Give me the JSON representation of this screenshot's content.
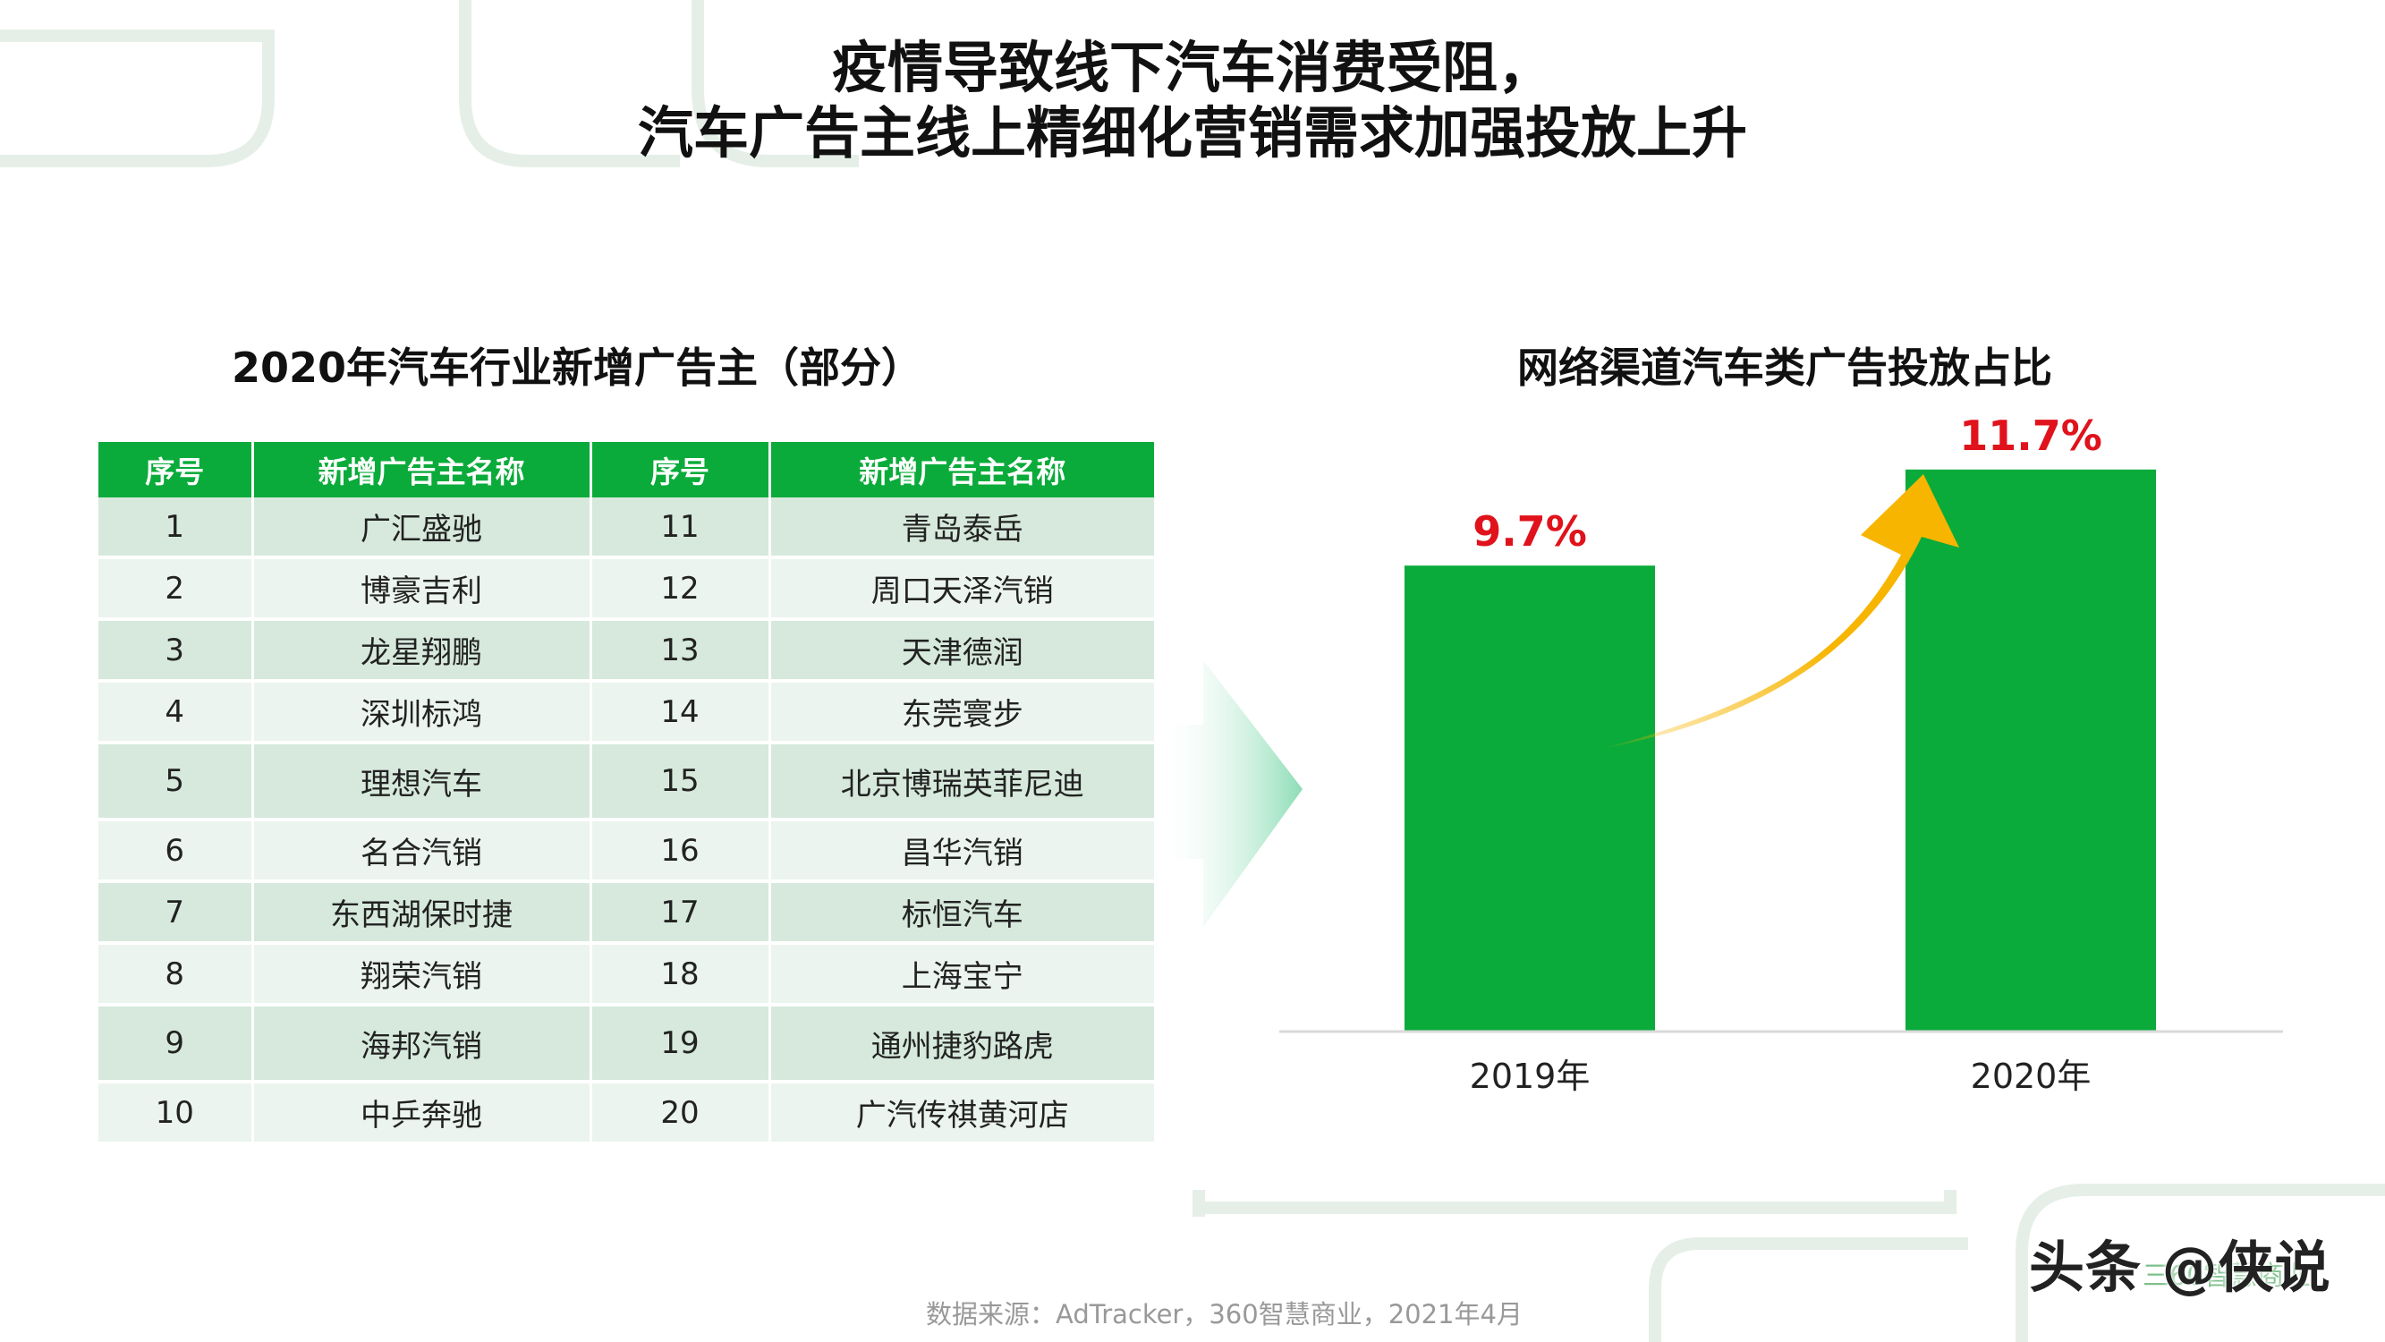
{
  "title": {
    "line1": "疫情导致线下汽车消费受阻，",
    "line2": "汽车广告主线上精细化营销需求加强投放上升"
  },
  "table": {
    "title": "2020年汽车行业新增广告主（部分）",
    "headers": [
      "序号",
      "新增广告主名称",
      "序号",
      "新增广告主名称"
    ],
    "rows": [
      [
        "1",
        "广汇盛驰",
        "11",
        "青岛泰岳"
      ],
      [
        "2",
        "博豪吉利",
        "12",
        "周口天泽汽销"
      ],
      [
        "3",
        "龙星翔鹏",
        "13",
        "天津德润"
      ],
      [
        "4",
        "深圳标鸿",
        "14",
        "东莞寰步"
      ],
      [
        "5",
        "理想汽车",
        "15",
        "北京博瑞英菲尼迪"
      ],
      [
        "6",
        "名合汽销",
        "16",
        "昌华汽销"
      ],
      [
        "7",
        "东西湖保时捷",
        "17",
        "标恒汽车"
      ],
      [
        "8",
        "翔荣汽销",
        "18",
        "上海宝宁"
      ],
      [
        "9",
        "海邦汽销",
        "19",
        "通州捷豹路虎"
      ],
      [
        "10",
        "中乒奔驰",
        "20",
        "广汽传祺黄河店"
      ]
    ]
  },
  "chart_data": {
    "type": "bar",
    "title": "网络渠道汽车类广告投放占比",
    "categories": [
      "2019年",
      "2020年"
    ],
    "values": [
      9.7,
      11.7
    ],
    "value_labels": [
      "9.7%",
      "11.7%"
    ],
    "unit": "%",
    "ylim": [
      0,
      13
    ],
    "grid": false,
    "colors": {
      "bar": "#0aab3a",
      "value_label": "#e0121b",
      "arrow": "#f7b500"
    }
  },
  "source": "数据来源：AdTracker，360智慧商业，2021年4月",
  "watermark": "头条 @侠说",
  "watermark_logo": "三60智慧商业"
}
